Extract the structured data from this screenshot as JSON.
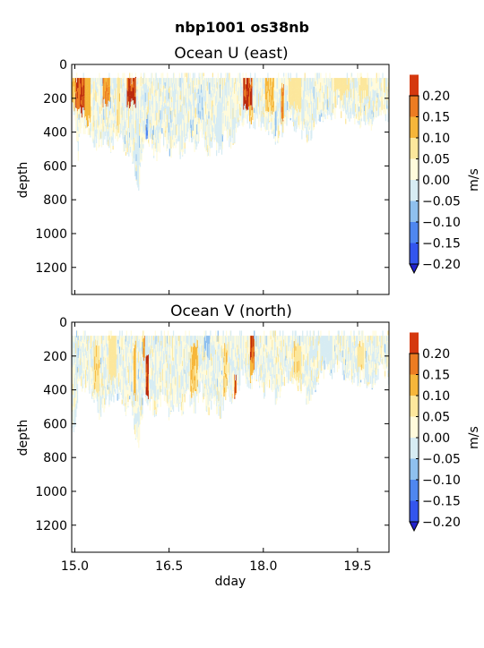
{
  "figure": {
    "suptitle": "nbp1001 os38nb"
  },
  "colorscale": {
    "levels": [
      -0.2,
      -0.15,
      -0.1,
      -0.05,
      0.0,
      0.05,
      0.1,
      0.15,
      0.2
    ],
    "colors": [
      "#3355ee",
      "#4f87f0",
      "#8fc0ee",
      "#d7ecf3",
      "#fffbdc",
      "#fce79c",
      "#f6b63a",
      "#ec7c22",
      "#d5380e"
    ],
    "under_color": "#2222cc",
    "over_color": "#bb2a0c"
  },
  "chart_data": [
    {
      "type": "heatmap",
      "title": "Ocean U (east)",
      "xlabel": "",
      "ylabel": "depth",
      "xlim": [
        14.95,
        20.0
      ],
      "ylim": [
        1360,
        0
      ],
      "xticks": [
        15.0,
        16.5,
        18.0,
        19.5
      ],
      "xticklabels_shown": false,
      "yticks": [
        0,
        200,
        400,
        600,
        800,
        1000,
        1200
      ],
      "colorbar_label": "m/s",
      "colorbar_ticks": [
        "0.20",
        "0.15",
        "0.10",
        "0.05",
        "0.00",
        "−0.05",
        "−0.10",
        "−0.15",
        "−0.20"
      ],
      "profile_top": 80,
      "bottom_profile": [
        [
          15.0,
          280
        ],
        [
          15.05,
          520
        ],
        [
          15.1,
          360
        ],
        [
          15.2,
          360
        ],
        [
          15.3,
          440
        ],
        [
          15.4,
          480
        ],
        [
          15.5,
          440
        ],
        [
          15.6,
          480
        ],
        [
          15.7,
          400
        ],
        [
          15.8,
          520
        ],
        [
          15.9,
          480
        ],
        [
          16.0,
          770
        ],
        [
          16.1,
          420
        ],
        [
          16.2,
          480
        ],
        [
          16.3,
          520
        ],
        [
          16.4,
          420
        ],
        [
          16.5,
          520
        ],
        [
          16.6,
          440
        ],
        [
          16.7,
          520
        ],
        [
          16.8,
          420
        ],
        [
          16.9,
          500
        ],
        [
          17.0,
          380
        ],
        [
          17.1,
          520
        ],
        [
          17.2,
          440
        ],
        [
          17.3,
          520
        ],
        [
          17.4,
          420
        ],
        [
          17.5,
          460
        ],
        [
          17.6,
          360
        ],
        [
          17.7,
          300
        ],
        [
          17.8,
          360
        ],
        [
          17.9,
          320
        ],
        [
          18.0,
          400
        ],
        [
          18.1,
          360
        ],
        [
          18.2,
          440
        ],
        [
          18.3,
          380
        ],
        [
          18.4,
          300
        ],
        [
          18.5,
          340
        ],
        [
          18.6,
          400
        ],
        [
          18.7,
          420
        ],
        [
          18.8,
          380
        ],
        [
          18.9,
          300
        ],
        [
          19.0,
          260
        ],
        [
          19.1,
          280
        ],
        [
          19.2,
          240
        ],
        [
          19.3,
          300
        ],
        [
          19.4,
          300
        ],
        [
          19.5,
          360
        ],
        [
          19.6,
          320
        ],
        [
          19.7,
          380
        ],
        [
          19.8,
          300
        ],
        [
          19.9,
          260
        ],
        [
          20.0,
          300
        ]
      ],
      "features": [
        {
          "x": 15.1,
          "w": 0.18,
          "ztop": 80,
          "zbot": 250,
          "v": 0.21
        },
        {
          "x": 15.2,
          "w": 0.1,
          "ztop": 80,
          "zbot": 300,
          "v": 0.13
        },
        {
          "x": 14.98,
          "w": 0.06,
          "ztop": 80,
          "zbot": 230,
          "v": 0.11
        },
        {
          "x": 15.5,
          "w": 0.12,
          "ztop": 80,
          "zbot": 200,
          "v": 0.16
        },
        {
          "x": 15.7,
          "w": 0.05,
          "ztop": 80,
          "zbot": 350,
          "v": 0.09
        },
        {
          "x": 15.9,
          "w": 0.14,
          "ztop": 80,
          "zbot": 200,
          "v": 0.21
        },
        {
          "x": 16.15,
          "w": 0.04,
          "ztop": 300,
          "zbot": 430,
          "v": -0.11
        },
        {
          "x": 16.0,
          "w": 0.03,
          "ztop": 300,
          "zbot": 770,
          "v": -0.04
        },
        {
          "x": 17.0,
          "w": 0.12,
          "ztop": 120,
          "zbot": 300,
          "v": -0.05
        },
        {
          "x": 17.3,
          "w": 0.08,
          "ztop": 200,
          "zbot": 520,
          "v": -0.04
        },
        {
          "x": 17.75,
          "w": 0.15,
          "ztop": 80,
          "zbot": 230,
          "v": 0.21
        },
        {
          "x": 17.8,
          "w": 0.06,
          "ztop": 230,
          "zbot": 320,
          "v": 0.12
        },
        {
          "x": 18.1,
          "w": 0.15,
          "ztop": 80,
          "zbot": 260,
          "v": 0.11
        },
        {
          "x": 18.3,
          "w": 0.05,
          "ztop": 100,
          "zbot": 300,
          "v": 0.16
        },
        {
          "x": 18.5,
          "w": 0.2,
          "ztop": 80,
          "zbot": 220,
          "v": 0.08
        },
        {
          "x": 18.2,
          "w": 0.04,
          "ztop": 260,
          "zbot": 420,
          "v": -0.06
        },
        {
          "x": 19.25,
          "w": 0.25,
          "ztop": 80,
          "zbot": 140,
          "v": 0.08
        },
        {
          "x": 19.6,
          "w": 0.15,
          "ztop": 80,
          "zbot": 150,
          "v": 0.07
        }
      ]
    },
    {
      "type": "heatmap",
      "title": "Ocean V (north)",
      "xlabel": "dday",
      "ylabel": "depth",
      "xlim": [
        14.95,
        20.0
      ],
      "ylim": [
        1360,
        0
      ],
      "xticks": [
        15.0,
        16.5,
        18.0,
        19.5
      ],
      "xticklabels": [
        "15.0",
        "16.5",
        "18.0",
        "19.5"
      ],
      "xticklabels_shown": true,
      "yticks": [
        0,
        200,
        400,
        600,
        800,
        1000,
        1200
      ],
      "colorbar_label": "m/s",
      "colorbar_ticks": [
        "0.20",
        "0.15",
        "0.10",
        "0.05",
        "0.00",
        "−0.05",
        "−0.10",
        "−0.15",
        "−0.20"
      ],
      "profile_top": 80,
      "bottom_profile": [
        [
          15.0,
          620
        ],
        [
          15.05,
          380
        ],
        [
          15.1,
          360
        ],
        [
          15.2,
          360
        ],
        [
          15.3,
          440
        ],
        [
          15.4,
          540
        ],
        [
          15.5,
          440
        ],
        [
          15.6,
          480
        ],
        [
          15.7,
          400
        ],
        [
          15.8,
          520
        ],
        [
          15.9,
          480
        ],
        [
          16.0,
          770
        ],
        [
          16.1,
          420
        ],
        [
          16.2,
          480
        ],
        [
          16.3,
          520
        ],
        [
          16.4,
          420
        ],
        [
          16.5,
          540
        ],
        [
          16.6,
          440
        ],
        [
          16.7,
          520
        ],
        [
          16.8,
          420
        ],
        [
          16.9,
          500
        ],
        [
          17.0,
          380
        ],
        [
          17.1,
          520
        ],
        [
          17.2,
          440
        ],
        [
          17.3,
          540
        ],
        [
          17.4,
          420
        ],
        [
          17.5,
          460
        ],
        [
          17.6,
          360
        ],
        [
          17.7,
          300
        ],
        [
          17.8,
          360
        ],
        [
          17.9,
          320
        ],
        [
          18.0,
          400
        ],
        [
          18.1,
          360
        ],
        [
          18.2,
          440
        ],
        [
          18.3,
          380
        ],
        [
          18.4,
          300
        ],
        [
          18.5,
          340
        ],
        [
          18.6,
          400
        ],
        [
          18.7,
          440
        ],
        [
          18.8,
          380
        ],
        [
          18.9,
          300
        ],
        [
          19.0,
          260
        ],
        [
          19.1,
          280
        ],
        [
          19.2,
          240
        ],
        [
          19.3,
          300
        ],
        [
          19.4,
          300
        ],
        [
          19.5,
          360
        ],
        [
          19.6,
          320
        ],
        [
          19.7,
          380
        ],
        [
          19.8,
          300
        ],
        [
          19.9,
          260
        ],
        [
          20.0,
          320
        ]
      ],
      "features": [
        {
          "x": 15.35,
          "w": 0.1,
          "ztop": 100,
          "zbot": 380,
          "v": 0.09
        },
        {
          "x": 15.6,
          "w": 0.12,
          "ztop": 80,
          "zbot": 300,
          "v": 0.08
        },
        {
          "x": 15.95,
          "w": 0.04,
          "ztop": 100,
          "zbot": 400,
          "v": 0.13
        },
        {
          "x": 16.15,
          "w": 0.05,
          "ztop": 200,
          "zbot": 420,
          "v": 0.21
        },
        {
          "x": 16.1,
          "w": 0.03,
          "ztop": 80,
          "zbot": 200,
          "v": 0.14
        },
        {
          "x": 16.9,
          "w": 0.12,
          "ztop": 100,
          "zbot": 400,
          "v": 0.11
        },
        {
          "x": 17.4,
          "w": 0.06,
          "ztop": 120,
          "zbot": 460,
          "v": 0.1
        },
        {
          "x": 17.55,
          "w": 0.04,
          "ztop": 300,
          "zbot": 460,
          "v": 0.18
        },
        {
          "x": 17.82,
          "w": 0.07,
          "ztop": 80,
          "zbot": 210,
          "v": 0.21
        },
        {
          "x": 17.82,
          "w": 0.06,
          "ztop": 210,
          "zbot": 300,
          "v": 0.14
        },
        {
          "x": 17.1,
          "w": 0.1,
          "ztop": 80,
          "zbot": 160,
          "v": -0.05
        },
        {
          "x": 18.55,
          "w": 0.12,
          "ztop": 100,
          "zbot": 300,
          "v": 0.09
        },
        {
          "x": 19.0,
          "w": 0.2,
          "ztop": 80,
          "zbot": 200,
          "v": -0.04
        },
        {
          "x": 19.55,
          "w": 0.1,
          "ztop": 100,
          "zbot": 260,
          "v": 0.09
        }
      ]
    }
  ]
}
